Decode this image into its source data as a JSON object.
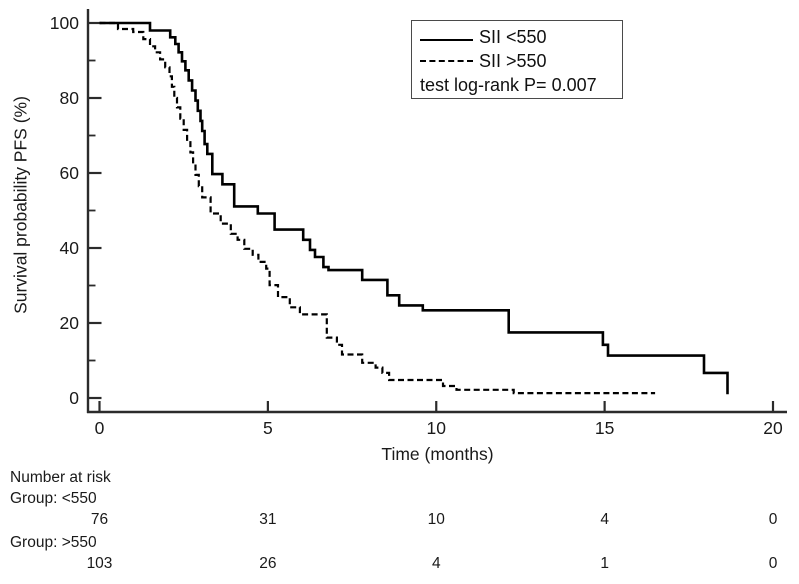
{
  "chart_data": {
    "type": "line",
    "subtype": "kaplan-meier-step",
    "title": "",
    "xlabel": "Time (months)",
    "ylabel": "Survival probability PFS (%)",
    "xlim": [
      0,
      20
    ],
    "ylim": [
      0,
      100
    ],
    "xticks": [
      0,
      5,
      10,
      15,
      20
    ],
    "yticks_major": [
      0,
      20,
      40,
      60,
      80,
      100
    ],
    "yticks_minor": [
      10,
      30,
      50,
      70,
      90
    ],
    "grid": false,
    "line_color": "#000000",
    "legend": {
      "position": "top-right",
      "entries": [
        {
          "label": "SII <550",
          "line_style": "solid"
        },
        {
          "label": "SII >550",
          "line_style": "dashed"
        }
      ],
      "annotation": "test log-rank P= 0.007"
    },
    "series": [
      {
        "name": "SII <550",
        "style": "solid",
        "points": [
          [
            0,
            100
          ],
          [
            1.5,
            98
          ],
          [
            2.1,
            96.2
          ],
          [
            2.25,
            94.4
          ],
          [
            2.35,
            92.2
          ],
          [
            2.45,
            89.8
          ],
          [
            2.55,
            87.4
          ],
          [
            2.65,
            84.7
          ],
          [
            2.75,
            82
          ],
          [
            2.85,
            79.3
          ],
          [
            2.92,
            76.6
          ],
          [
            3.0,
            73.9
          ],
          [
            3.05,
            71.2
          ],
          [
            3.12,
            67.7
          ],
          [
            3.2,
            65.1
          ],
          [
            3.35,
            59.7
          ],
          [
            3.65,
            57
          ],
          [
            4.0,
            51.1
          ],
          [
            4.7,
            49.2
          ],
          [
            5.2,
            44.9
          ],
          [
            6.05,
            42.2
          ],
          [
            6.25,
            39.5
          ],
          [
            6.4,
            37.6
          ],
          [
            6.65,
            34.9
          ],
          [
            6.8,
            34.1
          ],
          [
            7.8,
            31.5
          ],
          [
            8.55,
            27.4
          ],
          [
            8.9,
            24.7
          ],
          [
            9.6,
            23.4
          ],
          [
            12.15,
            17.5
          ],
          [
            14.95,
            14.2
          ],
          [
            15.1,
            11.3
          ],
          [
            17.95,
            6.7
          ],
          [
            18.65,
            1
          ]
        ]
      },
      {
        "name": "SII >550",
        "style": "dashed",
        "points": [
          [
            0,
            100
          ],
          [
            0.55,
            98.4
          ],
          [
            1.0,
            97.6
          ],
          [
            1.3,
            95.7
          ],
          [
            1.5,
            93.8
          ],
          [
            1.65,
            92.2
          ],
          [
            1.8,
            90.3
          ],
          [
            1.95,
            88.2
          ],
          [
            2.08,
            85.8
          ],
          [
            2.15,
            83
          ],
          [
            2.22,
            80
          ],
          [
            2.3,
            77.5
          ],
          [
            2.4,
            74.5
          ],
          [
            2.5,
            71.5
          ],
          [
            2.6,
            68.5
          ],
          [
            2.7,
            65.5
          ],
          [
            2.78,
            62.5
          ],
          [
            2.85,
            59.5
          ],
          [
            2.95,
            56.5
          ],
          [
            3.05,
            53.5
          ],
          [
            3.3,
            49.2
          ],
          [
            3.6,
            46.5
          ],
          [
            3.9,
            43.8
          ],
          [
            4.1,
            42.2
          ],
          [
            4.3,
            39.8
          ],
          [
            4.55,
            38.2
          ],
          [
            4.72,
            36.3
          ],
          [
            4.95,
            34.5
          ],
          [
            5.05,
            30.1
          ],
          [
            5.3,
            26.9
          ],
          [
            5.65,
            24.2
          ],
          [
            5.95,
            22.3
          ],
          [
            6.75,
            16.1
          ],
          [
            7.05,
            14.2
          ],
          [
            7.2,
            11.6
          ],
          [
            7.8,
            9.4
          ],
          [
            8.2,
            8.1
          ],
          [
            8.4,
            6.7
          ],
          [
            8.6,
            4.8
          ],
          [
            10.2,
            3.2
          ],
          [
            10.6,
            2.2
          ],
          [
            12.3,
            1.3
          ],
          [
            16.5,
            1.3
          ]
        ]
      }
    ]
  },
  "risk_table": {
    "heading": "Number at risk",
    "time_points": [
      0,
      5,
      10,
      15,
      20
    ],
    "groups": [
      {
        "label": "Group: <550",
        "counts": [
          "76",
          "31",
          "10",
          "4",
          "0"
        ]
      },
      {
        "label": "Group: >550",
        "counts": [
          "103",
          "26",
          "4",
          "1",
          "0"
        ]
      }
    ]
  }
}
